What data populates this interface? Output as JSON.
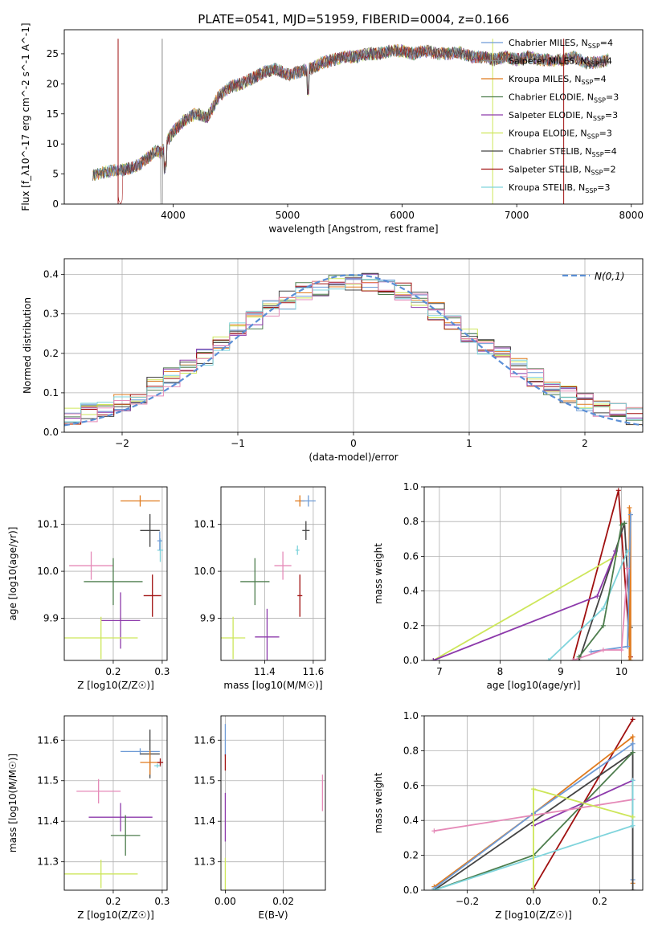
{
  "figure_title": "PLATE=0541, MJD=51959, FIBERID=0004, z=0.166",
  "series": [
    {
      "name": "Chabrier MILES",
      "nssp": "4",
      "color": "#6e9bd6"
    },
    {
      "name": "Salpeter MILES",
      "nssp": "4",
      "color": "#8a8a8a"
    },
    {
      "name": "Kroupa MILES",
      "nssp": "4",
      "color": "#e07b1f"
    },
    {
      "name": "Chabrier ELODIE",
      "nssp": "3",
      "color": "#4d7d4d"
    },
    {
      "name": "Salpeter ELODIE",
      "nssp": "3",
      "color": "#8d3aab"
    },
    {
      "name": "Kroupa ELODIE",
      "nssp": "3",
      "color": "#cde65a"
    },
    {
      "name": "Chabrier STELIB",
      "nssp": "4",
      "color": "#444444"
    },
    {
      "name": "Salpeter STELIB",
      "nssp": "2",
      "color": "#a01010"
    },
    {
      "name": "Kroupa STELIB",
      "nssp": "3",
      "color": "#7fd4dc"
    }
  ],
  "extra_colors": {
    "pink": "#e58ab8",
    "normal_curve": "#5b8fd6"
  },
  "chart_data": [
    {
      "id": "spectrum",
      "type": "line",
      "xlabel": "wavelength [Angstrom, rest frame]",
      "ylabel": "Flux [f_λ10^-17 erg cm^-2 s^-1 A^-1]",
      "xlim": [
        3050,
        8100
      ],
      "ylim": [
        0,
        29
      ],
      "xticks": [
        4000,
        5000,
        6000,
        7000,
        8000
      ],
      "yticks": [
        0,
        5,
        10,
        15,
        20,
        25
      ],
      "grid": false,
      "legend": "right",
      "x": [
        3300,
        3400,
        3500,
        3600,
        3700,
        3800,
        3850,
        3900,
        3950,
        4000,
        4100,
        4200,
        4300,
        4400,
        4500,
        4600,
        4700,
        4800,
        4900,
        5000,
        5100,
        5200,
        5300,
        5400,
        5500,
        5600,
        5700,
        5800,
        5900,
        6000,
        6100,
        6200,
        6300,
        6400,
        6500,
        6600,
        6700,
        6800,
        6900,
        7000,
        7100,
        7200,
        7300,
        7400,
        7500,
        7600,
        7700,
        7800
      ],
      "y": [
        4.8,
        5.3,
        5.6,
        5.8,
        6.5,
        8.0,
        9.0,
        8.5,
        10.5,
        12.0,
        14.0,
        15.0,
        14.5,
        18.0,
        19.5,
        20.0,
        21.0,
        22.0,
        22.5,
        21.5,
        22.0,
        22.5,
        23.5,
        24.0,
        24.5,
        24.5,
        25.0,
        25.0,
        25.5,
        25.5,
        25.0,
        25.5,
        25.0,
        25.0,
        25.2,
        24.5,
        24.5,
        24.0,
        24.5,
        24.0,
        24.5,
        24.0,
        24.0,
        24.0,
        24.5,
        23.5,
        23.5,
        24.0
      ]
    },
    {
      "id": "residuals",
      "type": "line",
      "xlabel": "(data-model)/error",
      "ylabel": "Normed distribution",
      "xlim": [
        -2.5,
        2.5
      ],
      "ylim": [
        0,
        0.44
      ],
      "xticks": [
        -2,
        -1,
        0,
        1,
        2
      ],
      "yticks": [
        0.0,
        0.1,
        0.2,
        0.3,
        0.4
      ],
      "grid": true,
      "legend": "top-right",
      "normal_label": "N(0,1)"
    },
    {
      "id": "age_vs_Z",
      "type": "scatter",
      "xlabel": "Z [log10(Z/Z☉)]",
      "ylabel": "age [log10(age/yr)]",
      "xlim": [
        0.1,
        0.31
      ],
      "ylim": [
        9.81,
        10.18
      ],
      "xticks": [
        0.2,
        0.3
      ],
      "yticks": [
        9.9,
        10.0,
        10.1
      ],
      "grid": true,
      "points": [
        {
          "c": 2,
          "x": 0.255,
          "y": 10.15,
          "xe": 0.04,
          "ye": 0.012
        },
        {
          "c": 6,
          "x": 0.275,
          "y": 10.087,
          "xe": 0.02,
          "ye": 0.035
        },
        {
          "c": 8,
          "x": 0.296,
          "y": 10.045,
          "xe": 0.006,
          "ye": 0.025
        },
        {
          "c": 9,
          "x": 0.155,
          "y": 10.012,
          "xe": 0.045,
          "ye": 0.03
        },
        {
          "c": 3,
          "x": 0.2,
          "y": 9.978,
          "xe": 0.06,
          "ye": 0.05
        },
        {
          "c": 4,
          "x": 0.215,
          "y": 9.895,
          "xe": 0.04,
          "ye": 0.06
        },
        {
          "c": 7,
          "x": 0.28,
          "y": 9.948,
          "xe": 0.018,
          "ye": 0.045
        },
        {
          "c": 5,
          "x": 0.175,
          "y": 9.858,
          "xe": 0.075,
          "ye": 0.045
        },
        {
          "c": 0,
          "x": 0.295,
          "y": 10.065,
          "xe": 0.005,
          "ye": 0.02
        }
      ]
    },
    {
      "id": "age_vs_mass",
      "type": "scatter",
      "xlabel": "mass [log10(M/M☉)]",
      "ylabel": "",
      "xlim": [
        11.22,
        11.65
      ],
      "ylim": [
        9.81,
        10.18
      ],
      "xticks": [
        11.4,
        11.6
      ],
      "yticks": [
        9.9,
        10.0,
        10.1
      ],
      "grid": true,
      "points": [
        {
          "c": 2,
          "x": 11.545,
          "y": 10.15,
          "xe": 0.02,
          "ye": 0.012
        },
        {
          "c": 0,
          "x": 11.58,
          "y": 10.15,
          "xe": 0.03,
          "ye": 0.012
        },
        {
          "c": 6,
          "x": 11.57,
          "y": 10.087,
          "xe": 0.015,
          "ye": 0.02
        },
        {
          "c": 8,
          "x": 11.535,
          "y": 10.045,
          "xe": 0.008,
          "ye": 0.01
        },
        {
          "c": 9,
          "x": 11.475,
          "y": 10.012,
          "xe": 0.035,
          "ye": 0.03
        },
        {
          "c": 3,
          "x": 11.36,
          "y": 9.978,
          "xe": 0.06,
          "ye": 0.05
        },
        {
          "c": 4,
          "x": 11.41,
          "y": 9.86,
          "xe": 0.05,
          "ye": 0.06
        },
        {
          "c": 7,
          "x": 11.545,
          "y": 9.948,
          "xe": 0.01,
          "ye": 0.045
        },
        {
          "c": 5,
          "x": 11.27,
          "y": 9.858,
          "xe": 0.05,
          "ye": 0.045
        }
      ]
    },
    {
      "id": "massweight_vs_age",
      "type": "line",
      "xlabel": "age [log10(age/yr)]",
      "ylabel": "mass weight",
      "xlim": [
        6.75,
        10.35
      ],
      "ylim": [
        0,
        1
      ],
      "xticks": [
        7,
        8,
        9,
        10
      ],
      "yticks": [
        0.0,
        0.2,
        0.4,
        0.6,
        0.8,
        1.0
      ],
      "grid": true,
      "lines": [
        {
          "c": 7,
          "x": [
            9.2,
            9.95,
            10.15
          ],
          "y": [
            0.0,
            0.98,
            0.02
          ]
        },
        {
          "c": 6,
          "x": [
            9.3,
            10.05,
            10.15
          ],
          "y": [
            0.0,
            0.79,
            0.19
          ]
        },
        {
          "c": 2,
          "x": [
            10.13,
            10.13,
            10.15,
            10.15
          ],
          "y": [
            0.0,
            0.88,
            0.84,
            0.0
          ]
        },
        {
          "c": 0,
          "x": [
            9.5,
            10.1,
            10.15
          ],
          "y": [
            0.05,
            0.08,
            0.84
          ]
        },
        {
          "c": 8,
          "x": [
            8.8,
            9.7,
            10.1
          ],
          "y": [
            0.0,
            0.3,
            0.63
          ]
        },
        {
          "c": 9,
          "x": [
            9.2,
            9.7,
            10.0,
            10.1
          ],
          "y": [
            0.0,
            0.06,
            0.06,
            0.53
          ]
        },
        {
          "c": 5,
          "x": [
            6.9,
            9.9
          ],
          "y": [
            0.0,
            0.6
          ]
        },
        {
          "c": 4,
          "x": [
            6.9,
            9.6,
            9.9
          ],
          "y": [
            0.0,
            0.37,
            0.63
          ]
        },
        {
          "c": 3,
          "x": [
            9.3,
            9.7,
            10.0,
            10.05
          ],
          "y": [
            0.02,
            0.2,
            0.78,
            0.79
          ]
        }
      ]
    },
    {
      "id": "mass_vs_Z",
      "type": "scatter",
      "xlabel": "Z [log10(Z/Z☉)]",
      "ylabel": "mass [log10(M/M☉)]",
      "xlim": [
        0.1,
        0.31
      ],
      "ylim": [
        11.23,
        11.66
      ],
      "xticks": [
        0.2,
        0.3
      ],
      "yticks": [
        11.3,
        11.4,
        11.5,
        11.6
      ],
      "grid": true,
      "points": [
        {
          "c": 0,
          "x": 0.255,
          "y": 11.572,
          "xe": 0.04,
          "ye": 0.008
        },
        {
          "c": 6,
          "x": 0.275,
          "y": 11.566,
          "xe": 0.02,
          "ye": 0.06
        },
        {
          "c": 2,
          "x": 0.275,
          "y": 11.545,
          "xe": 0.02,
          "ye": 0.03
        },
        {
          "c": 7,
          "x": 0.296,
          "y": 11.545,
          "xe": 0.006,
          "ye": 0.01
        },
        {
          "c": 8,
          "x": 0.29,
          "y": 11.537,
          "xe": 0.006,
          "ye": 0.005
        },
        {
          "c": 9,
          "x": 0.17,
          "y": 11.474,
          "xe": 0.045,
          "ye": 0.03
        },
        {
          "c": 4,
          "x": 0.215,
          "y": 11.41,
          "xe": 0.065,
          "ye": 0.035
        },
        {
          "c": 3,
          "x": 0.225,
          "y": 11.365,
          "xe": 0.03,
          "ye": 0.05
        },
        {
          "c": 5,
          "x": 0.175,
          "y": 11.27,
          "xe": 0.075,
          "ye": 0.035
        }
      ]
    },
    {
      "id": "mass_vs_ebv",
      "type": "scatter",
      "xlabel": "E(B-V)",
      "ylabel": "",
      "xlim": [
        -0.0015,
        0.0345
      ],
      "ylim": [
        11.23,
        11.66
      ],
      "xticks": [
        0.0,
        0.02
      ],
      "yticks": [
        11.3,
        11.4,
        11.5,
        11.6
      ],
      "grid": true,
      "points": [
        {
          "c": 0,
          "x": 0.0,
          "y": 11.6,
          "xe": 0,
          "ye": 0.04
        },
        {
          "c": 7,
          "x": 0.0,
          "y": 11.545,
          "xe": 0,
          "ye": 0.02
        },
        {
          "c": 4,
          "x": 0.0,
          "y": 11.41,
          "xe": 0,
          "ye": 0.06
        },
        {
          "c": 5,
          "x": 0.0,
          "y": 11.27,
          "xe": 0,
          "ye": 0.04
        },
        {
          "c": 9,
          "x": 0.0335,
          "y": 11.47,
          "xe": 0,
          "ye": 0.045
        }
      ]
    },
    {
      "id": "massweight_vs_Z",
      "type": "line",
      "xlabel": "Z [log10(Z/Z☉)]",
      "ylabel": "mass weight",
      "xlim": [
        -0.33,
        0.33
      ],
      "ylim": [
        0,
        1
      ],
      "xticks": [
        -0.2,
        0.0,
        0.2
      ],
      "yticks": [
        0.0,
        0.2,
        0.4,
        0.6,
        0.8,
        1.0
      ],
      "grid": true,
      "lines": [
        {
          "c": 7,
          "x": [
            0.0,
            0.3
          ],
          "y": [
            0.01,
            0.98
          ]
        },
        {
          "c": 2,
          "x": [
            -0.3,
            0.0,
            0.3,
            0.3
          ],
          "y": [
            0.02,
            0.44,
            0.88,
            0.04
          ]
        },
        {
          "c": 0,
          "x": [
            -0.3,
            0.0,
            0.3,
            0.3
          ],
          "y": [
            0.01,
            0.44,
            0.84,
            0.06
          ]
        },
        {
          "c": 6,
          "x": [
            -0.3,
            0.3,
            0.3
          ],
          "y": [
            0.0,
            0.79,
            0.0
          ]
        },
        {
          "c": 3,
          "x": [
            -0.3,
            0.0,
            0.3
          ],
          "y": [
            0.0,
            0.2,
            0.79
          ]
        },
        {
          "c": 4,
          "x": [
            0.0,
            0.3
          ],
          "y": [
            0.37,
            0.63
          ]
        },
        {
          "c": 9,
          "x": [
            -0.3,
            0.3
          ],
          "y": [
            0.34,
            0.52
          ]
        },
        {
          "c": 8,
          "x": [
            -0.3,
            0.3,
            0.3
          ],
          "y": [
            0.0,
            0.37,
            0.63
          ]
        },
        {
          "c": 5,
          "x": [
            0.0,
            0.0,
            0.3
          ],
          "y": [
            0.0,
            0.58,
            0.42
          ]
        }
      ]
    }
  ]
}
